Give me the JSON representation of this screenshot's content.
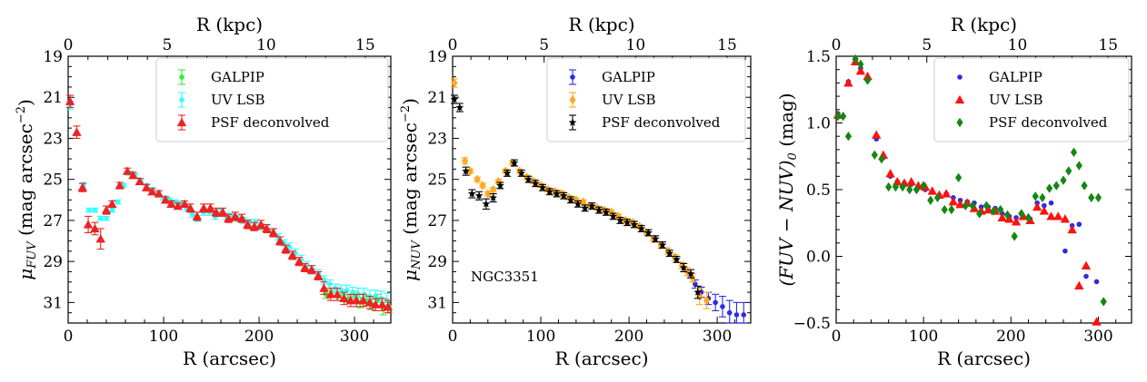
{
  "figure": {
    "series_styles": {
      "GALPIP": {
        "color": "#2b2be6",
        "panel1_color": "#33ee33"
      },
      "UV LSB": {
        "color": "#ff1111",
        "panel1_color": "#33ffff",
        "panel2_color": "#ffaa22"
      },
      "PSF deconvolved": {
        "color": "#118811",
        "panel1_color": "#ee2222",
        "panel2_color": "#000000"
      }
    }
  },
  "chart_data": [
    {
      "type": "scatter",
      "id": "fuv",
      "xlabel": "R (arcsec)",
      "ylabel": "μ_FUV (mag arcsec⁻²)",
      "ylabel_main": "μ",
      "ylabel_sub": "FUV",
      "ylabel_rest": " (mag arcsec",
      "ylabel_sup": "−2",
      "ylabel_close": ")",
      "top_xlabel": "R (kpc)",
      "xlim": [
        0,
        338
      ],
      "ylim": [
        32.0,
        19.0
      ],
      "xticks": [
        0,
        100,
        200,
        300
      ],
      "yticks": [
        19,
        21,
        23,
        25,
        27,
        29,
        31
      ],
      "top_xticks": [
        0,
        5,
        10,
        15
      ],
      "kpc_per_arcsec": 0.0482,
      "legend": [
        "GALPIP",
        "UV LSB",
        "PSF deconvolved"
      ],
      "legend_position": "top-right",
      "series": [
        {
          "name": "GALPIP",
          "marker": "dot",
          "color": "#33ee33",
          "x": [
            270,
            276,
            282,
            288,
            294,
            300,
            306,
            312,
            318,
            324,
            330,
            336
          ],
          "y": [
            30.6,
            30.5,
            30.7,
            30.6,
            30.8,
            30.7,
            31.0,
            30.9,
            31.1,
            30.9,
            31.3,
            31.2
          ],
          "err": [
            0.2,
            0.2,
            0.2,
            0.2,
            0.2,
            0.25,
            0.25,
            0.25,
            0.25,
            0.3,
            0.3,
            0.3
          ]
        },
        {
          "name": "UV LSB",
          "marker": "dot",
          "color": "#33ffff",
          "x": [
            2,
            16,
            22,
            28,
            34,
            40,
            46,
            52,
            58,
            64,
            70,
            76,
            82,
            88,
            94,
            100,
            106,
            112,
            118,
            124,
            130,
            136,
            142,
            148,
            154,
            160,
            166,
            172,
            178,
            184,
            190,
            196,
            202,
            208,
            214,
            220,
            226,
            232,
            238,
            244,
            250,
            256,
            262,
            268,
            274,
            280,
            286,
            292,
            298,
            304,
            310,
            316,
            322,
            328,
            334
          ],
          "y": [
            21.4,
            25.3,
            26.5,
            26.5,
            26.9,
            26.9,
            26.5,
            26.1,
            25.3,
            24.7,
            24.8,
            25.1,
            25.3,
            25.5,
            25.7,
            25.9,
            26.0,
            26.1,
            26.2,
            26.4,
            26.7,
            26.9,
            26.6,
            26.6,
            26.8,
            26.6,
            26.8,
            26.8,
            26.9,
            27.0,
            27.1,
            27.1,
            27.3,
            27.4,
            27.6,
            27.8,
            28.1,
            28.3,
            28.6,
            28.9,
            29.2,
            29.4,
            29.6,
            29.9,
            30.1,
            30.3,
            30.4,
            30.4,
            30.5,
            30.6,
            30.6,
            30.7,
            30.7,
            30.8,
            30.9
          ],
          "err": [
            0.2,
            0.15,
            0.1,
            0.1,
            0.1,
            0.1,
            0.1,
            0.1,
            0.1,
            0.1,
            0.1,
            0.1,
            0.1,
            0.1,
            0.1,
            0.1,
            0.1,
            0.1,
            0.15,
            0.15,
            0.15,
            0.15,
            0.15,
            0.15,
            0.15,
            0.15,
            0.15,
            0.15,
            0.15,
            0.15,
            0.15,
            0.15,
            0.15,
            0.15,
            0.15,
            0.15,
            0.15,
            0.2,
            0.2,
            0.2,
            0.2,
            0.2,
            0.2,
            0.2,
            0.2,
            0.2,
            0.25,
            0.25,
            0.25,
            0.3,
            0.3,
            0.3,
            0.3,
            0.35,
            0.35
          ]
        },
        {
          "name": "PSF deconvolved",
          "marker": "triangle",
          "color": "#ee2222",
          "x": [
            2,
            9,
            15,
            21,
            28,
            34,
            40,
            46,
            54,
            62,
            68,
            75,
            82,
            88,
            95,
            102,
            108,
            115,
            122,
            128,
            135,
            142,
            149,
            155,
            162,
            168,
            175,
            182,
            188,
            195,
            202,
            208,
            215,
            222,
            228,
            235,
            242,
            248,
            255,
            262,
            268,
            275,
            282,
            289,
            296,
            302,
            309,
            316,
            322,
            329,
            335
          ],
          "y": [
            21.2,
            22.7,
            25.4,
            27.2,
            27.4,
            27.9,
            26.5,
            26.2,
            25.3,
            24.6,
            24.8,
            25.1,
            25.4,
            25.6,
            25.7,
            26.0,
            26.2,
            26.3,
            26.2,
            26.4,
            26.8,
            26.4,
            26.4,
            26.6,
            26.6,
            26.9,
            26.8,
            26.9,
            27.2,
            27.3,
            27.2,
            27.4,
            27.6,
            28.0,
            28.4,
            28.7,
            29.0,
            29.3,
            29.4,
            29.7,
            30.3,
            30.6,
            30.6,
            30.8,
            30.9,
            30.9,
            30.9,
            31.0,
            31.1,
            31.1,
            31.2
          ],
          "err": [
            0.3,
            0.3,
            0.2,
            0.4,
            0.3,
            0.5,
            0.2,
            0.15,
            0.15,
            0.15,
            0.15,
            0.15,
            0.15,
            0.15,
            0.15,
            0.15,
            0.15,
            0.15,
            0.15,
            0.2,
            0.2,
            0.2,
            0.2,
            0.2,
            0.2,
            0.2,
            0.2,
            0.2,
            0.2,
            0.2,
            0.2,
            0.2,
            0.2,
            0.2,
            0.2,
            0.2,
            0.2,
            0.2,
            0.2,
            0.2,
            0.3,
            0.3,
            0.3,
            0.3,
            0.3,
            0.3,
            0.3,
            0.3,
            0.3,
            0.3,
            0.3
          ]
        }
      ]
    },
    {
      "type": "scatter",
      "id": "nuv",
      "xlabel": "R (arcsec)",
      "ylabel": "μ_NUV (mag arcsec⁻²)",
      "ylabel_main": "μ",
      "ylabel_sub": "NUV",
      "ylabel_rest": " (mag arcsec",
      "ylabel_sup": "−2",
      "ylabel_close": ")",
      "top_xlabel": "R (kpc)",
      "xlim": [
        0,
        338
      ],
      "ylim": [
        32.0,
        19.0
      ],
      "xticks": [
        0,
        100,
        200,
        300
      ],
      "yticks": [
        19,
        21,
        23,
        25,
        27,
        29,
        31
      ],
      "top_xticks": [
        0,
        5,
        10,
        15
      ],
      "kpc_per_arcsec": 0.0482,
      "annotation": "NGC3351",
      "legend": [
        "GALPIP",
        "UV LSB",
        "PSF deconvolved"
      ],
      "legend_position": "top-right",
      "series": [
        {
          "name": "GALPIP",
          "marker": "dot",
          "color": "#2b2be6",
          "x": [
            275,
            282,
            290,
            298,
            306,
            314,
            322,
            330
          ],
          "y": [
            30.1,
            30.5,
            30.8,
            31.0,
            31.2,
            31.5,
            31.6,
            31.6
          ],
          "err": [
            0.2,
            0.25,
            0.3,
            0.4,
            0.5,
            0.6,
            0.6,
            0.6
          ]
        },
        {
          "name": "UV LSB",
          "marker": "diamond",
          "color": "#ffaa22",
          "x": [
            2,
            14,
            20,
            28,
            34,
            40,
            46,
            52,
            60,
            68,
            76,
            84,
            92,
            100,
            108,
            116,
            124,
            132,
            140,
            148,
            156,
            164,
            172,
            180,
            188,
            196,
            204,
            212,
            220,
            228,
            236,
            244,
            252,
            260,
            266,
            272,
            280,
            288
          ],
          "y": [
            20.3,
            24.1,
            24.6,
            25.0,
            25.3,
            25.7,
            25.5,
            25.1,
            24.6,
            24.2,
            24.6,
            24.9,
            25.1,
            25.3,
            25.5,
            25.6,
            25.7,
            25.9,
            26.0,
            26.1,
            26.3,
            26.4,
            26.5,
            26.6,
            26.8,
            27.0,
            27.1,
            27.3,
            27.6,
            27.9,
            28.2,
            28.5,
            28.8,
            29.2,
            29.5,
            29.8,
            30.7,
            30.9
          ],
          "err": [
            0.2,
            0.15,
            0.1,
            0.1,
            0.1,
            0.1,
            0.1,
            0.1,
            0.1,
            0.1,
            0.1,
            0.1,
            0.1,
            0.1,
            0.1,
            0.1,
            0.1,
            0.1,
            0.1,
            0.1,
            0.1,
            0.1,
            0.1,
            0.1,
            0.1,
            0.1,
            0.1,
            0.1,
            0.1,
            0.1,
            0.15,
            0.15,
            0.15,
            0.15,
            0.2,
            0.2,
            0.4,
            0.4
          ]
        },
        {
          "name": "PSF deconvolved",
          "marker": "star",
          "color": "#000000",
          "x": [
            2,
            8,
            15,
            22,
            30,
            38,
            46,
            54,
            62,
            70,
            78,
            86,
            94,
            102,
            110,
            118,
            126,
            134,
            142,
            150,
            158,
            166,
            174,
            182,
            190,
            198,
            206,
            214,
            222,
            230,
            238,
            246,
            254,
            262,
            270,
            278
          ],
          "y": [
            21.1,
            21.5,
            24.6,
            25.7,
            25.8,
            26.2,
            25.9,
            25.3,
            24.7,
            24.2,
            24.7,
            25.0,
            25.2,
            25.4,
            25.6,
            25.7,
            25.8,
            26.0,
            26.2,
            26.4,
            26.3,
            26.5,
            26.6,
            26.8,
            27.0,
            27.1,
            27.2,
            27.4,
            27.6,
            27.9,
            28.2,
            28.6,
            28.9,
            29.3,
            29.6,
            30.5
          ],
          "err": [
            0.2,
            0.2,
            0.2,
            0.2,
            0.2,
            0.25,
            0.2,
            0.15,
            0.15,
            0.15,
            0.15,
            0.15,
            0.15,
            0.15,
            0.15,
            0.15,
            0.15,
            0.15,
            0.15,
            0.15,
            0.15,
            0.15,
            0.15,
            0.15,
            0.15,
            0.15,
            0.15,
            0.15,
            0.15,
            0.15,
            0.15,
            0.15,
            0.15,
            0.2,
            0.2,
            0.3
          ]
        }
      ]
    },
    {
      "type": "scatter",
      "id": "color",
      "xlabel": "R (arcsec)",
      "ylabel": "(FUV − NUV)₀ (mag)",
      "ylabel_main": "(FUV − NUV)",
      "ylabel_sub": "0",
      "ylabel_rest": " (mag)",
      "ylabel_sup": "",
      "ylabel_close": "",
      "top_xlabel": "R (kpc)",
      "xlim": [
        0,
        338
      ],
      "ylim": [
        -0.5,
        1.5
      ],
      "xticks": [
        0,
        100,
        200,
        300
      ],
      "yticks": [
        -0.5,
        0.0,
        0.5,
        1.0,
        1.5
      ],
      "ytick_labels": [
        "−0.5",
        "0.0",
        "0.5",
        "1.0",
        "1.5"
      ],
      "top_xticks": [
        0,
        5,
        10,
        15
      ],
      "kpc_per_arcsec": 0.0482,
      "legend": [
        "GALPIP",
        "UV LSB",
        "PSF deconvolved"
      ],
      "legend_position": "top-right",
      "series": [
        {
          "name": "GALPIP",
          "marker": "dot",
          "color": "#2b2be6",
          "x": [
            2,
            14,
            22,
            28,
            36,
            46,
            54,
            62,
            70,
            78,
            86,
            94,
            102,
            110,
            118,
            126,
            134,
            142,
            150,
            158,
            166,
            174,
            182,
            190,
            198,
            206,
            214,
            222,
            230,
            238,
            246,
            254,
            262,
            270,
            278,
            286,
            298
          ],
          "y": [
            1.07,
            1.31,
            1.47,
            1.41,
            1.32,
            0.88,
            0.74,
            0.6,
            0.56,
            0.55,
            0.54,
            0.52,
            0.5,
            0.48,
            0.46,
            0.47,
            0.44,
            0.42,
            0.41,
            0.4,
            0.37,
            0.37,
            0.36,
            0.32,
            0.3,
            0.29,
            0.3,
            0.28,
            0.4,
            0.38,
            0.4,
            0.29,
            0.04,
            0.23,
            0.24,
            -0.15,
            -0.19
          ]
        },
        {
          "name": "UV LSB",
          "marker": "triangle",
          "color": "#ff1111",
          "x": [
            2,
            14,
            22,
            28,
            36,
            46,
            54,
            62,
            70,
            78,
            86,
            94,
            102,
            110,
            118,
            126,
            134,
            142,
            150,
            158,
            166,
            174,
            182,
            190,
            198,
            206,
            214,
            222,
            230,
            238,
            246,
            254,
            262,
            270,
            278,
            286,
            298
          ],
          "y": [
            1.06,
            1.3,
            1.46,
            1.39,
            1.35,
            0.91,
            0.76,
            0.62,
            0.56,
            0.55,
            0.56,
            0.53,
            0.52,
            0.49,
            0.46,
            0.47,
            0.41,
            0.39,
            0.4,
            0.36,
            0.34,
            0.35,
            0.34,
            0.29,
            0.28,
            0.26,
            0.3,
            0.27,
            0.37,
            0.34,
            0.3,
            0.3,
            0.28,
            0.2,
            -0.22,
            -0.07,
            -0.49
          ]
        },
        {
          "name": "PSF deconvolved",
          "marker": "diamond",
          "color": "#118811",
          "x": [
            2,
            8,
            14,
            22,
            28,
            36,
            44,
            52,
            60,
            68,
            76,
            84,
            92,
            100,
            108,
            116,
            124,
            132,
            140,
            148,
            156,
            164,
            172,
            180,
            188,
            196,
            204,
            212,
            220,
            228,
            236,
            244,
            252,
            260,
            266,
            272,
            278,
            284,
            292,
            300,
            306
          ],
          "y": [
            1.05,
            1.05,
            0.9,
            1.48,
            1.44,
            1.32,
            0.76,
            0.73,
            0.52,
            0.52,
            0.52,
            0.5,
            0.5,
            0.53,
            0.42,
            0.44,
            0.35,
            0.35,
            0.59,
            0.38,
            0.38,
            0.32,
            0.38,
            0.34,
            0.35,
            0.31,
            0.15,
            0.32,
            0.29,
            0.45,
            0.44,
            0.51,
            0.53,
            0.57,
            0.64,
            0.78,
            0.68,
            0.53,
            0.44,
            0.44,
            -0.34
          ]
        }
      ]
    }
  ]
}
